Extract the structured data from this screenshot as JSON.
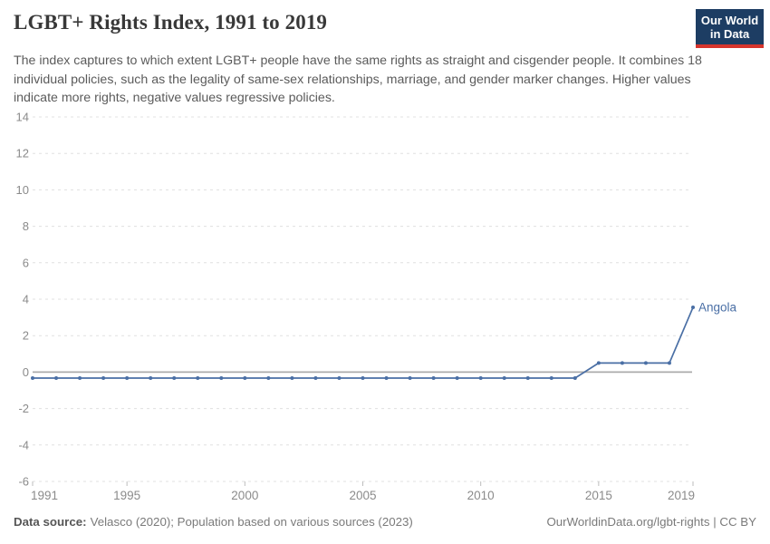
{
  "header": {
    "title": "LGBT+ Rights Index, 1991 to 2019",
    "subtitle_lines": [
      "The index captures to which extent LGBT+ people have the same rights as straight and cisgender people. It",
      "combines 18 individual policies, such as the legality of same-sex relationships, marriage, and gender marker",
      "changes. Higher values indicate more rights, negative values regressive policies."
    ],
    "logo": {
      "line1": "Our World",
      "line2": "in Data",
      "bg_color": "#1d3d63",
      "accent_color": "#d6342c"
    }
  },
  "chart_data": {
    "type": "line",
    "title": "LGBT+ Rights Index, 1991 to 2019",
    "xlabel": "",
    "ylabel": "",
    "x": [
      1991,
      1992,
      1993,
      1994,
      1995,
      1996,
      1997,
      1998,
      1999,
      2000,
      2001,
      2002,
      2003,
      2004,
      2005,
      2006,
      2007,
      2008,
      2009,
      2010,
      2011,
      2012,
      2013,
      2014,
      2015,
      2016,
      2017,
      2018,
      2019
    ],
    "series": [
      {
        "name": "Angola",
        "values": [
          -0.33,
          -0.33,
          -0.33,
          -0.33,
          -0.33,
          -0.33,
          -0.33,
          -0.33,
          -0.33,
          -0.33,
          -0.33,
          -0.33,
          -0.33,
          -0.33,
          -0.33,
          -0.33,
          -0.33,
          -0.33,
          -0.33,
          -0.33,
          -0.33,
          -0.33,
          -0.33,
          -0.33,
          0.5,
          0.5,
          0.5,
          0.5,
          3.55
        ]
      }
    ],
    "xticks": [
      1991,
      1995,
      2000,
      2005,
      2010,
      2015,
      2019
    ],
    "yticks": [
      -6,
      -4,
      -2,
      0,
      2,
      4,
      6,
      8,
      10,
      12,
      14
    ],
    "xlim": [
      1991,
      2019
    ],
    "ylim": [
      -6,
      14
    ],
    "grid": "horizontal-dashed",
    "legend": "end-of-line-label",
    "line_color": "#4a6fa5",
    "axis_label_color": "#8b8b8b",
    "gridline_color": "#e0e0e0",
    "zero_line_color": "#ababab",
    "tick_mark_color": "#bdbdbd"
  },
  "footer": {
    "source_label": "Data source:",
    "source_text": "Velasco (2020); Population based on various sources (2023)",
    "credit": "OurWorldinData.org/lgbt-rights | CC BY"
  }
}
